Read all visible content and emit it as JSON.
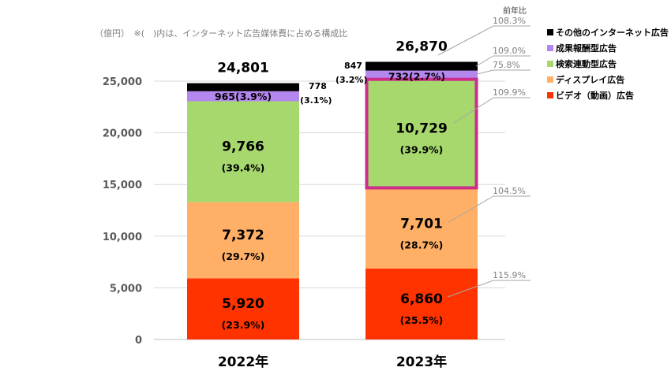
{
  "chart_data": {
    "type": "bar",
    "stacked": true,
    "unit_note": "（億円）　※(　)内は、インターネット広告媒体費に占める構成比",
    "categories": [
      "2022年",
      "2023年"
    ],
    "totals": [
      "24,801",
      "26,870"
    ],
    "ylim": [
      0,
      25000
    ],
    "yticks": [
      "0",
      "5,000",
      "10,000",
      "15,000",
      "20,000",
      "25,000"
    ],
    "ytick_values": [
      0,
      5000,
      10000,
      15000,
      20000,
      25000
    ],
    "yoy_title": "前年比",
    "highlight_series": "検索連動型広告",
    "highlight_color": "#cc2e8a",
    "legend_position": "right",
    "series": [
      {
        "name": "ビデオ（動画）広告",
        "color": "#ff3300",
        "values": [
          5920,
          6860
        ],
        "labels": [
          "5,920",
          "6,860"
        ],
        "pcts": [
          "(23.9%)",
          "(25.5%)"
        ],
        "yoy": "115.9%"
      },
      {
        "name": "ディスプレイ広告",
        "color": "#ffb066",
        "values": [
          7372,
          7701
        ],
        "labels": [
          "7,372",
          "7,701"
        ],
        "pcts": [
          "(29.7%)",
          "(28.7%)"
        ],
        "yoy": "104.5%"
      },
      {
        "name": "検索連動型広告",
        "color": "#a6d86e",
        "values": [
          9766,
          10729
        ],
        "labels": [
          "9,766",
          "10,729"
        ],
        "pcts": [
          "(39.4%)",
          "(39.9%)"
        ],
        "yoy": "109.9%"
      },
      {
        "name": "成果報酬型広告",
        "color": "#b486f0",
        "values": [
          965,
          732
        ],
        "labels": [
          "965(3.9%)",
          "732(2.7%)"
        ],
        "pcts": [
          "",
          ""
        ],
        "yoy": "75.8%"
      },
      {
        "name": "その他のインターネット広告",
        "color": "#000000",
        "values": [
          778,
          847
        ],
        "labels": [
          "778",
          "847"
        ],
        "pcts": [
          "(3.1%)",
          "(3.2%)"
        ],
        "yoy": "109.0%"
      }
    ],
    "total_yoy": "108.3%"
  }
}
